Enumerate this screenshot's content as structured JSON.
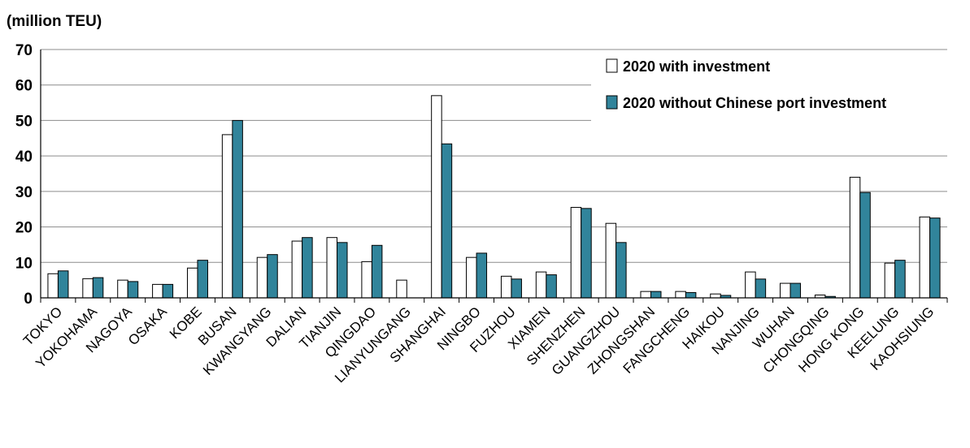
{
  "chart_data": {
    "type": "bar",
    "ylabel": "(million TEU)",
    "ylim": [
      0,
      70
    ],
    "yticks": [
      0,
      10,
      20,
      30,
      40,
      50,
      60,
      70
    ],
    "grid": true,
    "legend_position": "top-right",
    "categories": [
      "TOKYO",
      "YOKOHAMA",
      "NAGOYA",
      "OSAKA",
      "KOBE",
      "BUSAN",
      "KWANGYANG",
      "DALIAN",
      "TIANJIN",
      "QINGDAO",
      "LIANYUNGANG",
      "SHANGHAI",
      "NINGBO",
      "FUZHOU",
      "XIAMEN",
      "SHENZHEN",
      "GUANGZHOU",
      "ZHONGSHAN",
      "FANGCHENG",
      "HAIKOU",
      "NANJING",
      "WUHAN",
      "CHONGQING",
      "HONG KONG",
      "KEELUNG",
      "KAOHSIUNG"
    ],
    "series": [
      {
        "name": "2020 with investment",
        "color": "#ffffff",
        "values": [
          6.8,
          5.4,
          5.0,
          3.8,
          8.4,
          46.0,
          11.4,
          16.0,
          17.0,
          10.2,
          5.0,
          57.0,
          11.4,
          6.1,
          7.3,
          25.5,
          21.0,
          1.8,
          1.8,
          1.1,
          7.3,
          4.1,
          0.8,
          34.0,
          9.8,
          22.8
        ]
      },
      {
        "name": "2020 without Chinese port investment",
        "color": "#31849b",
        "values": [
          7.6,
          5.7,
          4.6,
          3.8,
          10.6,
          50.0,
          12.2,
          17.0,
          15.6,
          14.8,
          0.0,
          43.4,
          12.6,
          5.3,
          6.5,
          25.2,
          15.6,
          1.8,
          1.5,
          0.7,
          5.3,
          4.1,
          0.4,
          29.7,
          10.6,
          22.5
        ]
      }
    ]
  }
}
